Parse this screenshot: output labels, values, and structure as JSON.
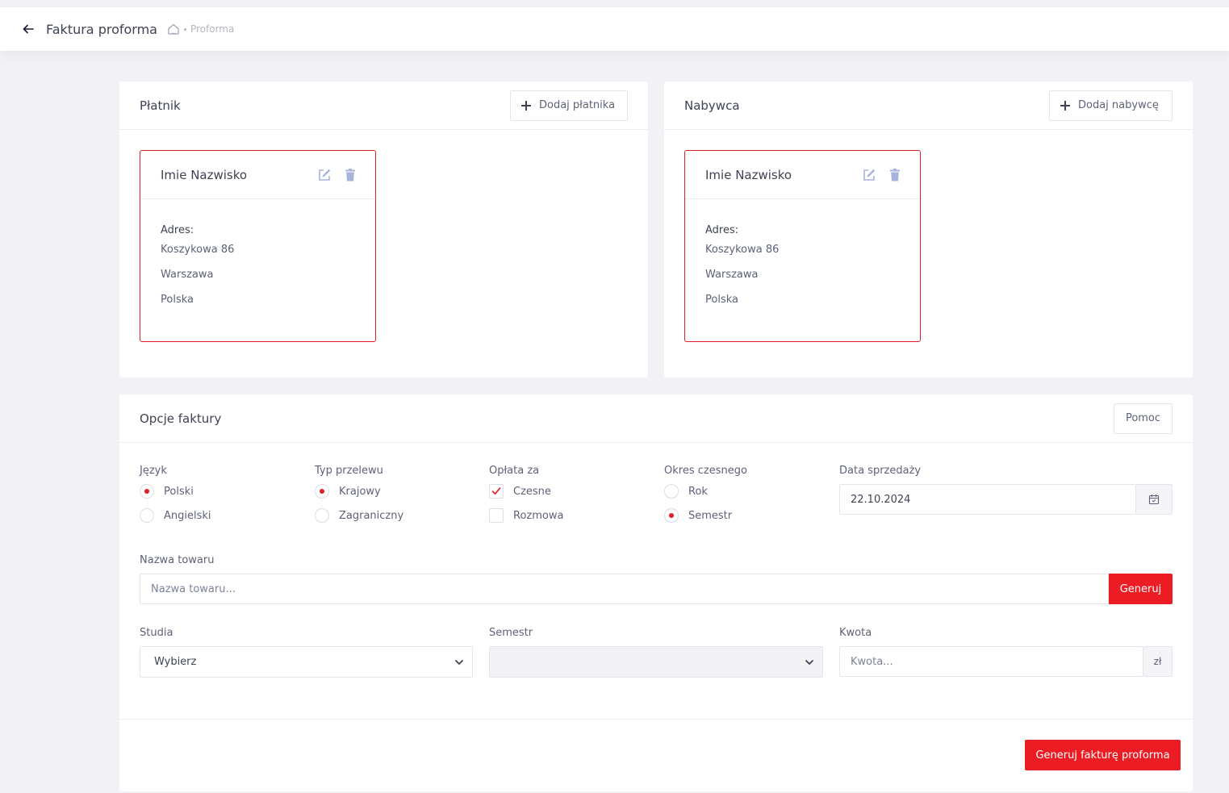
{
  "header": {
    "title": "Faktura proforma",
    "breadcrumb": "Proforma"
  },
  "payer": {
    "title": "Płatnik",
    "add_label": "Dodaj płatnika",
    "name": "Imie Nazwisko",
    "address_label": "Adres:",
    "street": "Koszykowa 86",
    "city": "Warszawa",
    "country": "Polska"
  },
  "buyer": {
    "title": "Nabywca",
    "add_label": "Dodaj nabywcę",
    "name": "Imie Nazwisko",
    "address_label": "Adres:",
    "street": "Koszykowa 86",
    "city": "Warszawa",
    "country": "Polska"
  },
  "options": {
    "title": "Opcje faktury",
    "help_label": "Pomoc",
    "language": {
      "label": "Język",
      "options": [
        "Polski",
        "Angielski"
      ],
      "selected": "Polski"
    },
    "transfer": {
      "label": "Typ przelewu",
      "options": [
        "Krajowy",
        "Zagraniczny"
      ],
      "selected": "Krajowy"
    },
    "fee": {
      "label": "Opłata za",
      "options": [
        "Czesne",
        "Rozmowa"
      ],
      "checked": [
        "Czesne"
      ]
    },
    "period": {
      "label": "Okres czesnego",
      "options": [
        "Rok",
        "Semestr"
      ],
      "selected": "Semestr"
    },
    "sale_date": {
      "label": "Data sprzedaży",
      "value": "22.10.2024"
    },
    "product": {
      "label": "Nazwa towaru",
      "placeholder": "Nazwa towaru...",
      "button": "Generuj"
    },
    "studies": {
      "label": "Studia",
      "value": "Wybierz"
    },
    "semester": {
      "label": "Semestr",
      "value": ""
    },
    "amount": {
      "label": "Kwota",
      "placeholder": "Kwota...",
      "unit": "zł"
    },
    "submit_label": "Generuj fakturę proforma"
  },
  "colors": {
    "accent": "#ec1c24",
    "border_accent": "#e01e25",
    "background": "#f1f1f6"
  },
  "icons": [
    "arrow-left-icon",
    "home-icon",
    "plus-icon",
    "edit-icon",
    "trash-icon",
    "calendar-icon",
    "chevron-down-icon"
  ]
}
